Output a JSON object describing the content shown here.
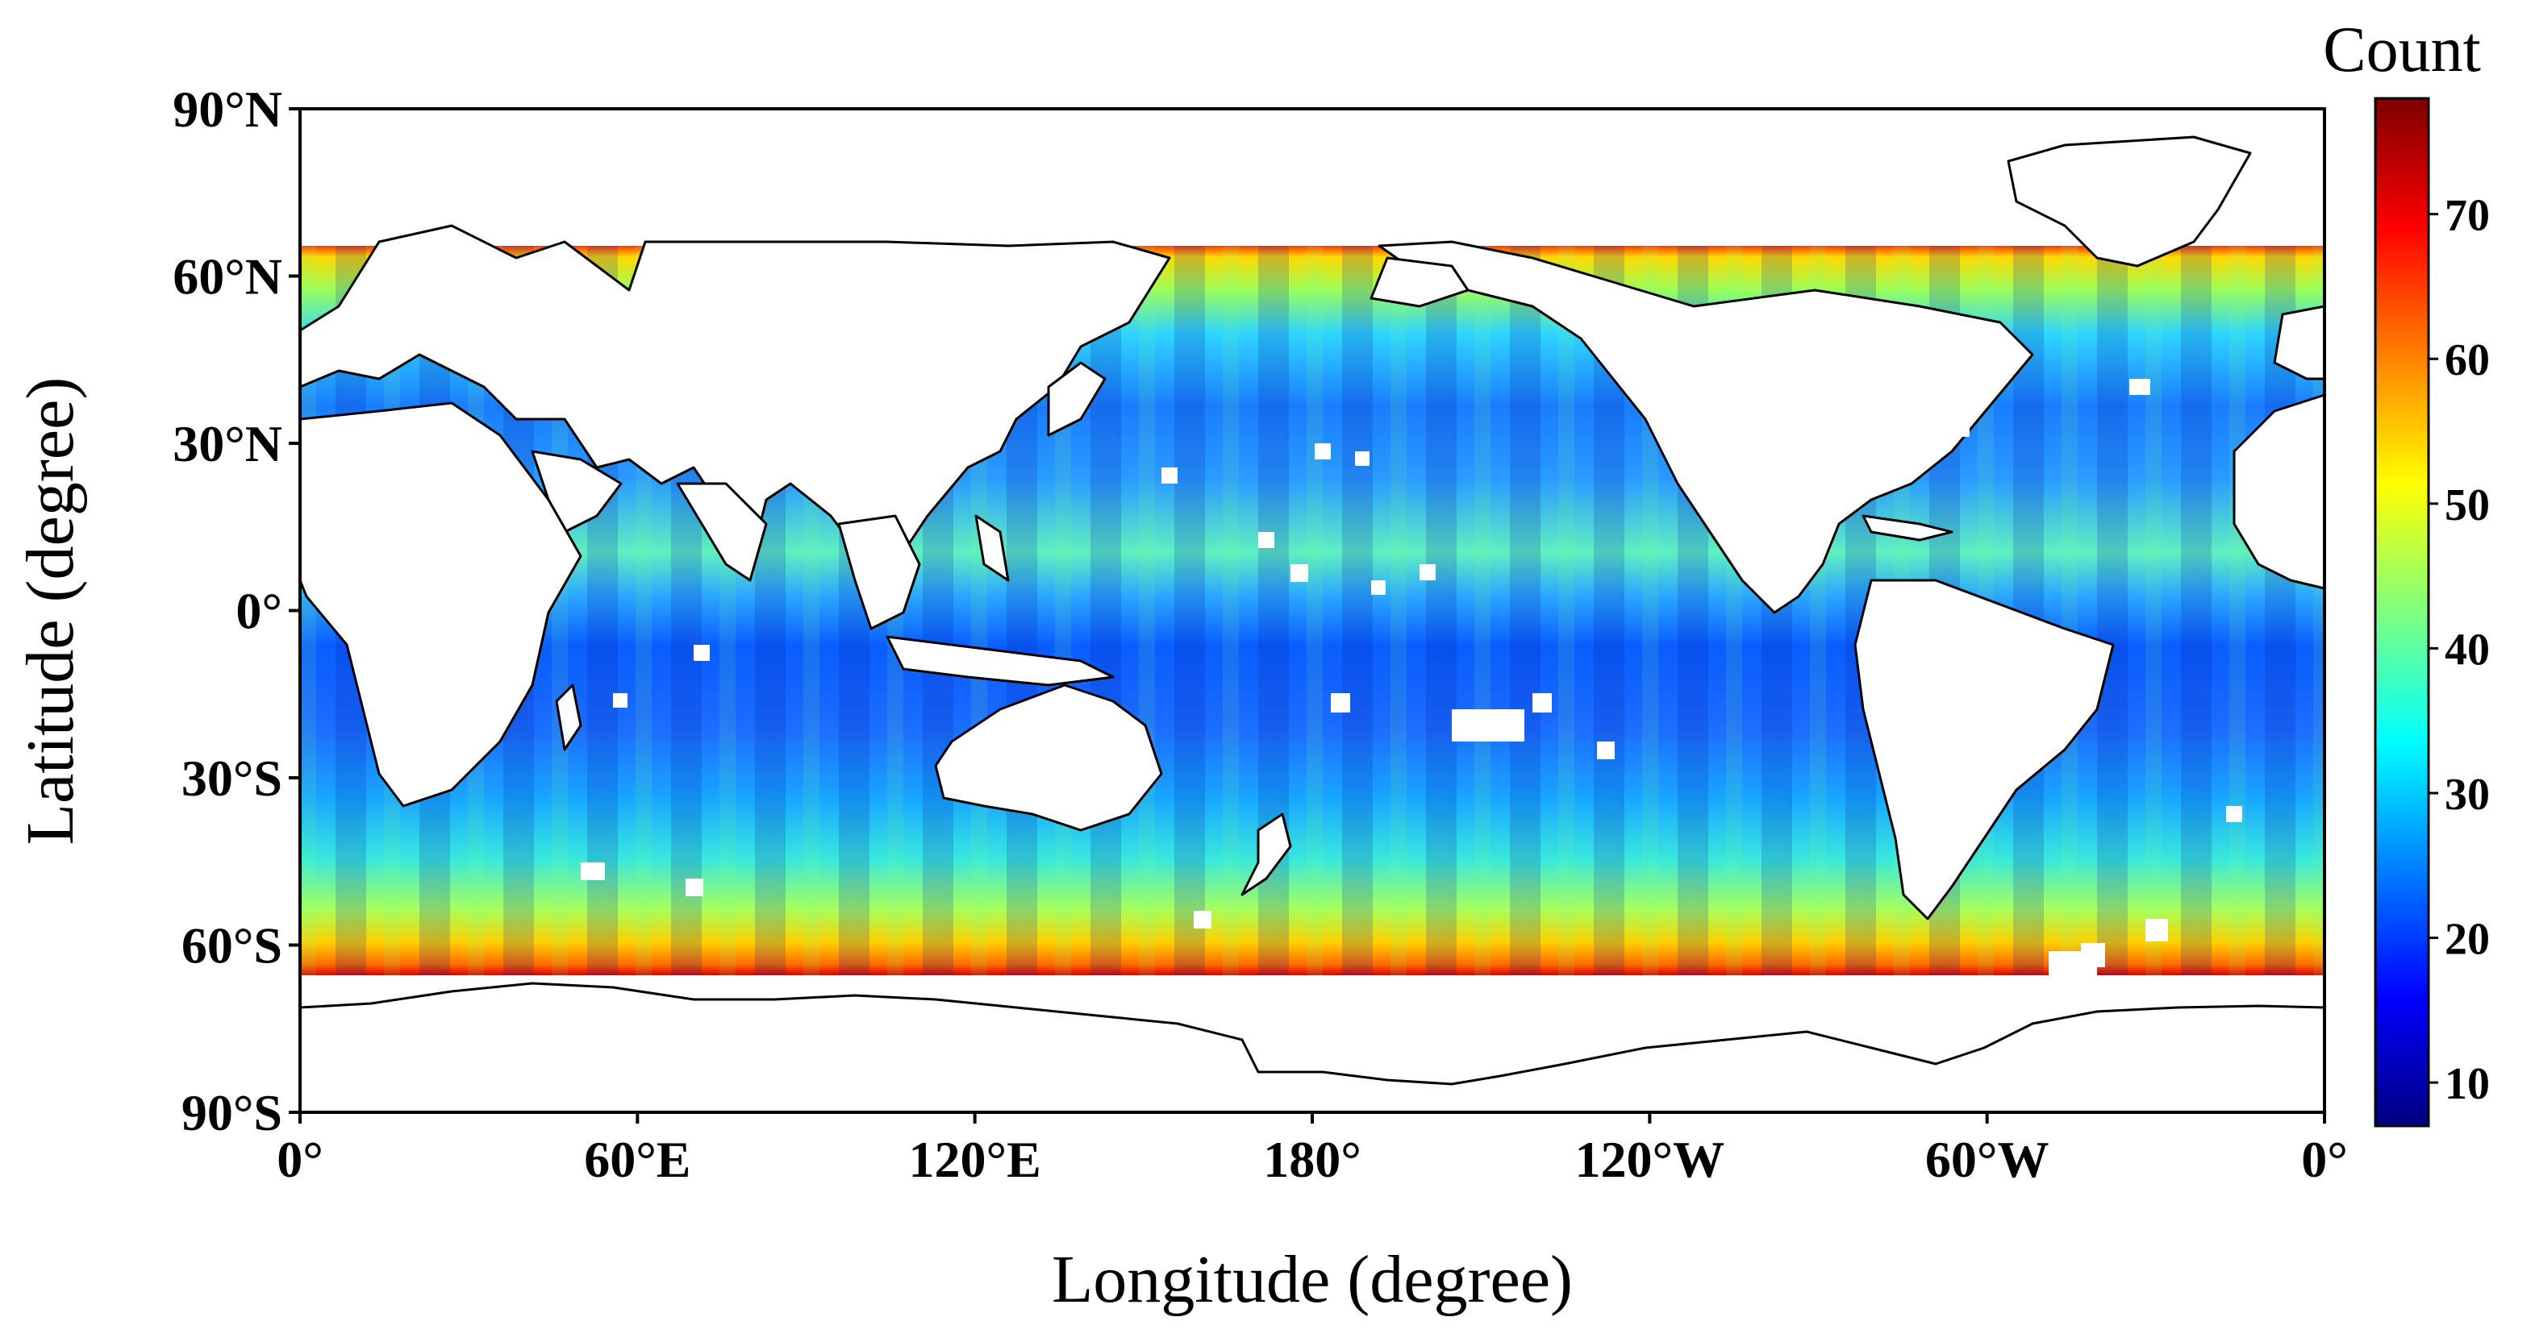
{
  "map": {
    "xlabel": "Longitude (degree)",
    "ylabel": "Latitude (degree)",
    "x_ticks": [
      {
        "lon": 0,
        "label": "0°"
      },
      {
        "lon": 60,
        "label": "60°E"
      },
      {
        "lon": 120,
        "label": "120°E"
      },
      {
        "lon": 180,
        "label": "180°"
      },
      {
        "lon": 240,
        "label": "120°W"
      },
      {
        "lon": 300,
        "label": "60°W"
      },
      {
        "lon": 360,
        "label": "0°"
      }
    ],
    "y_ticks": [
      {
        "lat": 90,
        "label": "90°N"
      },
      {
        "lat": 60,
        "label": "60°N"
      },
      {
        "lat": 30,
        "label": "30°N"
      },
      {
        "lat": 0,
        "label": "0°"
      },
      {
        "lat": -30,
        "label": "30°S"
      },
      {
        "lat": -60,
        "label": "60°S"
      },
      {
        "lat": -90,
        "label": "90°S"
      }
    ],
    "lon_range": [
      0,
      360
    ],
    "lat_range": [
      -90,
      90
    ],
    "data_lat_coverage": [
      -65,
      65
    ],
    "colormap": "jet",
    "land_color": "#ffffff",
    "coastline_color": "#000000"
  },
  "colorbar": {
    "title": "Count",
    "range": [
      7,
      78
    ],
    "ticks": [
      10,
      20,
      30,
      40,
      50,
      60,
      70
    ]
  }
}
